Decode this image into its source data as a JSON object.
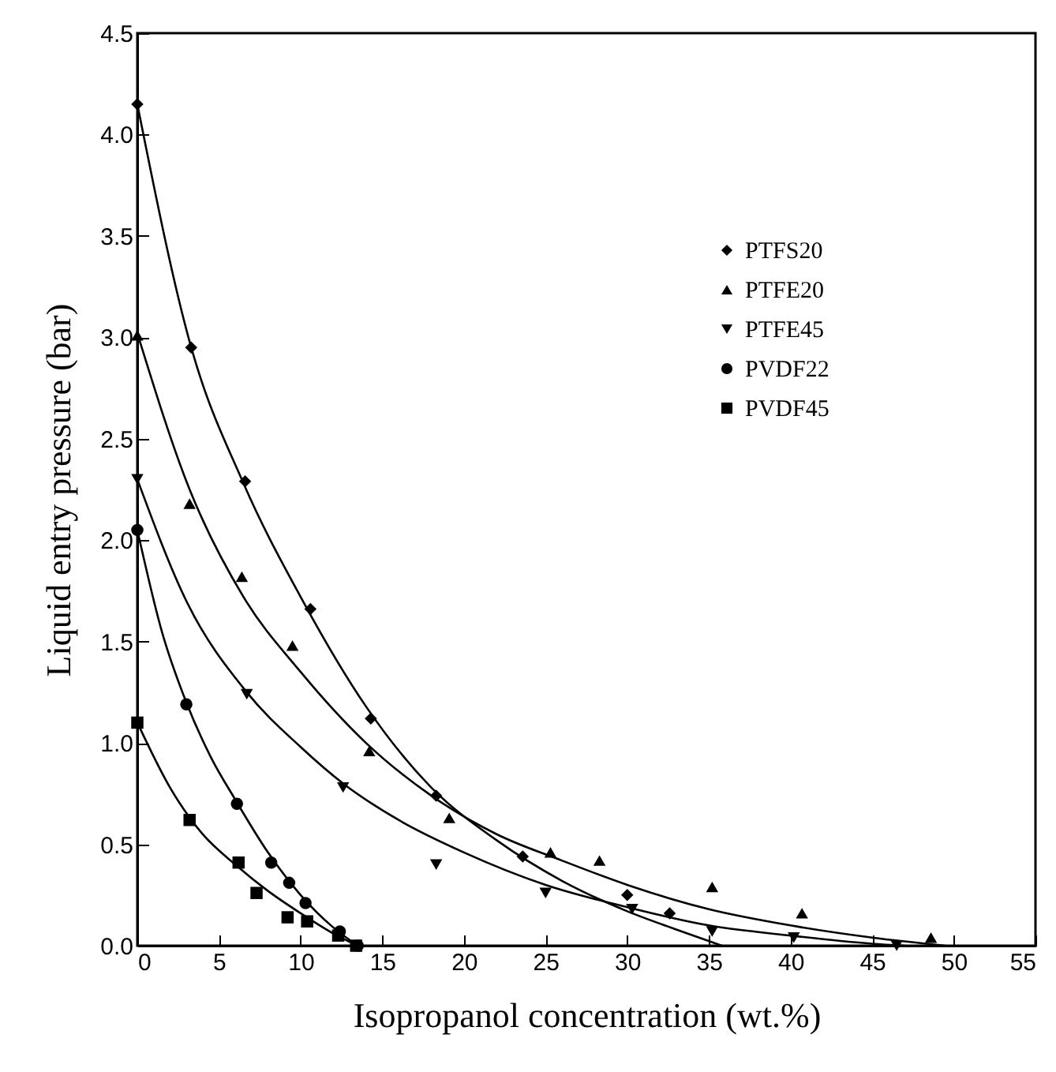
{
  "chart_data": {
    "type": "scatter",
    "xlabel": "Isopropanol concentration (wt.%)",
    "ylabel": "Liquid entry pressure (bar)",
    "xlim": [
      0,
      55
    ],
    "xticks": [
      0,
      5,
      10,
      15,
      20,
      25,
      30,
      35,
      40,
      45,
      50,
      55
    ],
    "ylim": [
      0,
      4.5
    ],
    "yticks": [
      {
        "value": 0,
        "label": "0.0"
      },
      0.5,
      {
        "value": 1,
        "label": "1.0"
      },
      1.5,
      {
        "value": 2,
        "label": "2.0"
      },
      2.5,
      {
        "value": 3,
        "label": "3.0"
      },
      3.5,
      {
        "value": 4,
        "label": "4.0"
      },
      4.5
    ],
    "grid": false,
    "legend": "top right",
    "series": [
      {
        "name": "PTFS20",
        "marker": "diamond",
        "color": "#000000",
        "x": [
          0,
          3.3,
          6.6,
          10.6,
          14.3,
          18.3,
          23.6,
          30.0,
          32.6
        ],
        "values": [
          4.15,
          2.95,
          2.29,
          1.66,
          1.12,
          0.74,
          0.44,
          0.25,
          0.16
        ]
      },
      {
        "name": "PTFE20",
        "marker": "triangle",
        "color": "#000000",
        "x": [
          0,
          3.2,
          6.4,
          9.5,
          14.2,
          19.1,
          25.3,
          28.3,
          35.2,
          40.7,
          48.6
        ],
        "values": [
          3.01,
          2.18,
          1.82,
          1.48,
          0.96,
          0.63,
          0.46,
          0.42,
          0.29,
          0.16,
          0.04
        ]
      },
      {
        "name": "PTFE45",
        "marker": "triangle-down",
        "color": "#000000",
        "x": [
          0,
          6.7,
          12.6,
          18.3,
          25.0,
          30.3,
          35.2,
          40.2,
          46.5
        ],
        "values": [
          2.3,
          1.24,
          0.78,
          0.4,
          0.26,
          0.18,
          0.07,
          0.04,
          0.0
        ]
      },
      {
        "name": "PVDF22",
        "marker": "circle",
        "color": "#000000",
        "x": [
          0,
          3.0,
          6.1,
          8.2,
          9.3,
          10.3,
          12.4,
          13.5
        ],
        "values": [
          2.05,
          1.19,
          0.7,
          0.41,
          0.31,
          0.21,
          0.07,
          0.0
        ]
      },
      {
        "name": "PVDF45",
        "marker": "square",
        "color": "#000000",
        "x": [
          0,
          3.2,
          6.2,
          7.3,
          9.2,
          10.4,
          12.3,
          13.4
        ],
        "values": [
          1.1,
          0.62,
          0.41,
          0.26,
          0.14,
          0.12,
          0.05,
          0.0
        ]
      },
      {
        "type": "line",
        "color": "#000000",
        "x": [
          0,
          3.3,
          6.5,
          10,
          14,
          18,
          22,
          26,
          30,
          33,
          35.8
        ],
        "values": [
          4.15,
          2.95,
          2.28,
          1.72,
          1.18,
          0.78,
          0.52,
          0.32,
          0.17,
          0.08,
          0
        ]
      },
      {
        "type": "line",
        "color": "#000000",
        "x": [
          0,
          3.2,
          6.5,
          10,
          14,
          18,
          22,
          26,
          30,
          35,
          40,
          45,
          49.5
        ],
        "values": [
          3.02,
          2.25,
          1.72,
          1.35,
          1.0,
          0.74,
          0.55,
          0.42,
          0.3,
          0.18,
          0.1,
          0.04,
          0
        ]
      },
      {
        "type": "line",
        "color": "#000000",
        "x": [
          0,
          3,
          6.7,
          10,
          12.6,
          16,
          20,
          25,
          30,
          35,
          40,
          45,
          47
        ],
        "values": [
          2.3,
          1.7,
          1.25,
          0.98,
          0.8,
          0.62,
          0.46,
          0.3,
          0.19,
          0.1,
          0.05,
          0.01,
          0
        ]
      },
      {
        "type": "line",
        "color": "#000000",
        "x": [
          0,
          1.5,
          3,
          4.5,
          6,
          8,
          10,
          12,
          13.5
        ],
        "values": [
          2.05,
          1.55,
          1.2,
          0.93,
          0.72,
          0.46,
          0.25,
          0.09,
          0
        ]
      },
      {
        "type": "line",
        "color": "#000000",
        "x": [
          0,
          2,
          4,
          6,
          8,
          10,
          12,
          13.5
        ],
        "values": [
          1.1,
          0.78,
          0.55,
          0.4,
          0.27,
          0.16,
          0.06,
          0
        ]
      }
    ]
  }
}
